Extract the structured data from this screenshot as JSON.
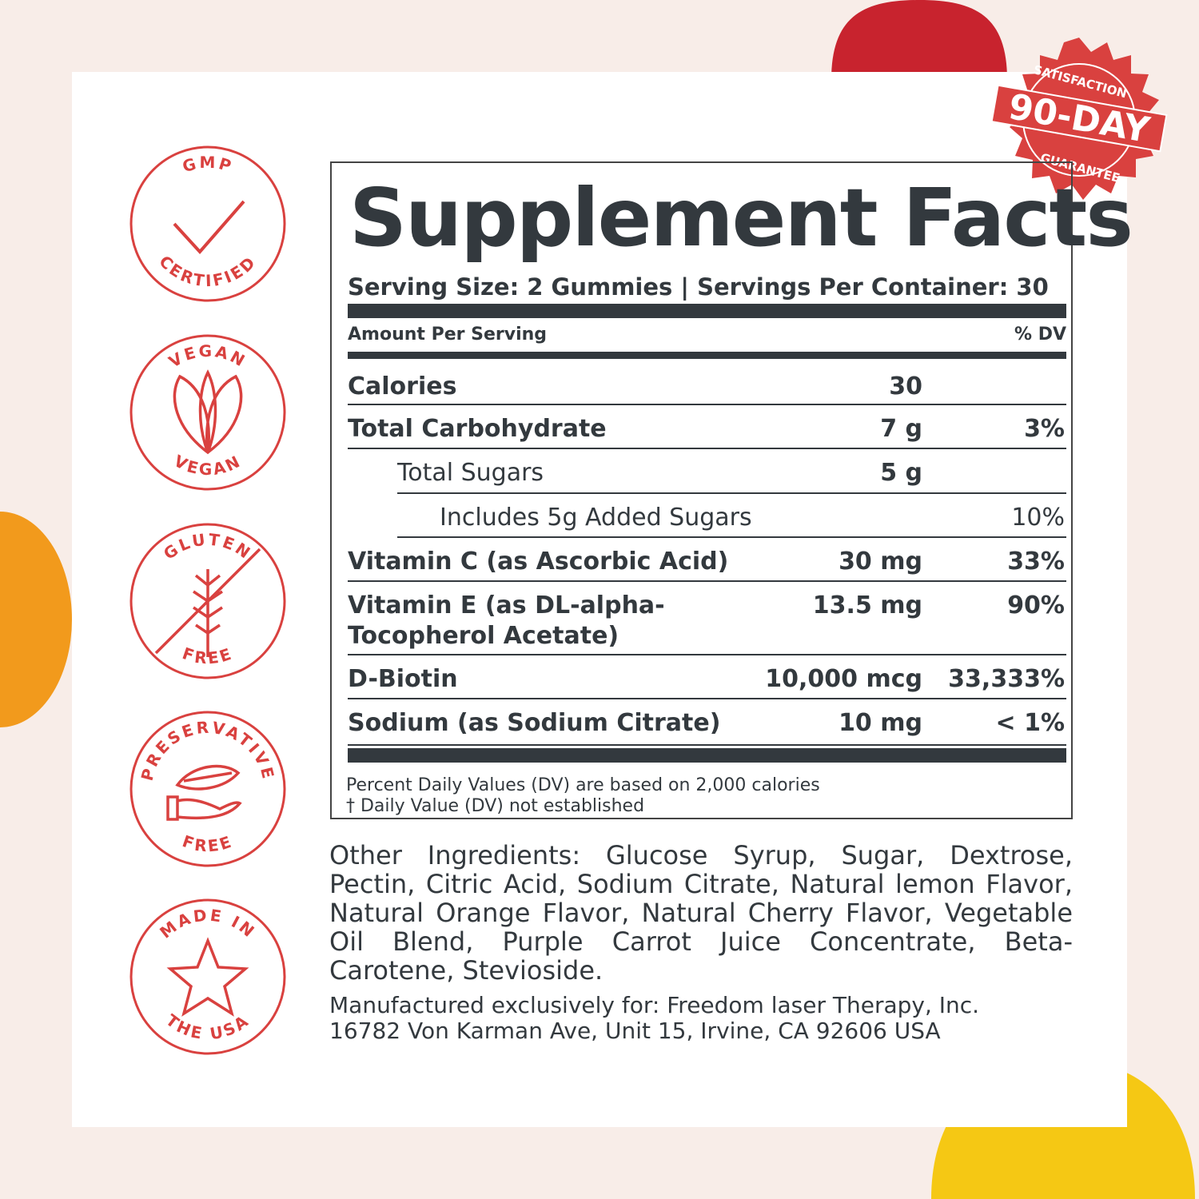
{
  "colors": {
    "accent": "#d9413f",
    "text": "#33393e",
    "background": "#f8ede8"
  },
  "badges": [
    {
      "icon": "check-icon",
      "top": "GMP",
      "bottom": "CERTIFIED"
    },
    {
      "icon": "leaf-icon",
      "top": "VEGAN",
      "bottom": "VEGAN"
    },
    {
      "icon": "wheat-crossed-icon",
      "top": "GLUTEN",
      "bottom": "FREE"
    },
    {
      "icon": "hand-leaf-icon",
      "top": "PRESERVATIVE",
      "bottom": "FREE"
    },
    {
      "icon": "star-icon",
      "top": "MADE IN",
      "bottom": "THE USA"
    }
  ],
  "seal": {
    "top": "SATISFACTION",
    "main": "90-DAY",
    "bottom": "GUARANTEE"
  },
  "facts": {
    "title": "Supplement Facts",
    "serving": "Serving Size: 2 Gummies | Servings Per Container: 30",
    "amount_header": "Amount Per Serving",
    "dv_header": "% DV",
    "rows": [
      {
        "name": "Calories",
        "amount": "30",
        "dv": ""
      },
      {
        "name": "Total Carbohydrate",
        "amount": "7 g",
        "dv": "3%"
      },
      {
        "name": "Total Sugars",
        "amount": "5 g",
        "dv": ""
      },
      {
        "name": "Includes  5g Added Sugars",
        "amount": "",
        "dv": "10%"
      },
      {
        "name": "Vitamin C (as Ascorbic Acid)",
        "amount": "30 mg",
        "dv": "33%"
      },
      {
        "name": "Vitamin E (as DL-alpha-",
        "name2": "Tocopherol Acetate)",
        "amount": "13.5 mg",
        "dv": "90%"
      },
      {
        "name": "D-Biotin",
        "amount": "10,000 mcg",
        "dv": "33,333%"
      },
      {
        "name": "Sodium (as Sodium Citrate)",
        "amount": "10 mg",
        "dv": "< 1%"
      }
    ],
    "footnote1": "Percent Daily Values (DV) are based on 2,000 calories",
    "footnote2": "†   Daily Value (DV) not established"
  },
  "other_ingredients": "Other Ingredients: Glucose Syrup, Sugar, Dextrose, Pectin, Citric Acid, Sodium Citrate, Natural lemon Flavor, Natural Orange Flavor, Natural Cherry Flavor, Vegetable Oil Blend, Purple Carrot Juice Concentrate, Beta-Carotene, Stevioside.",
  "manufacturer1": "Manufactured exclusively for: Freedom laser Therapy, Inc.",
  "manufacturer2": "16782 Von Karman Ave, Unit 15, Irvine, CA 92606 USA"
}
